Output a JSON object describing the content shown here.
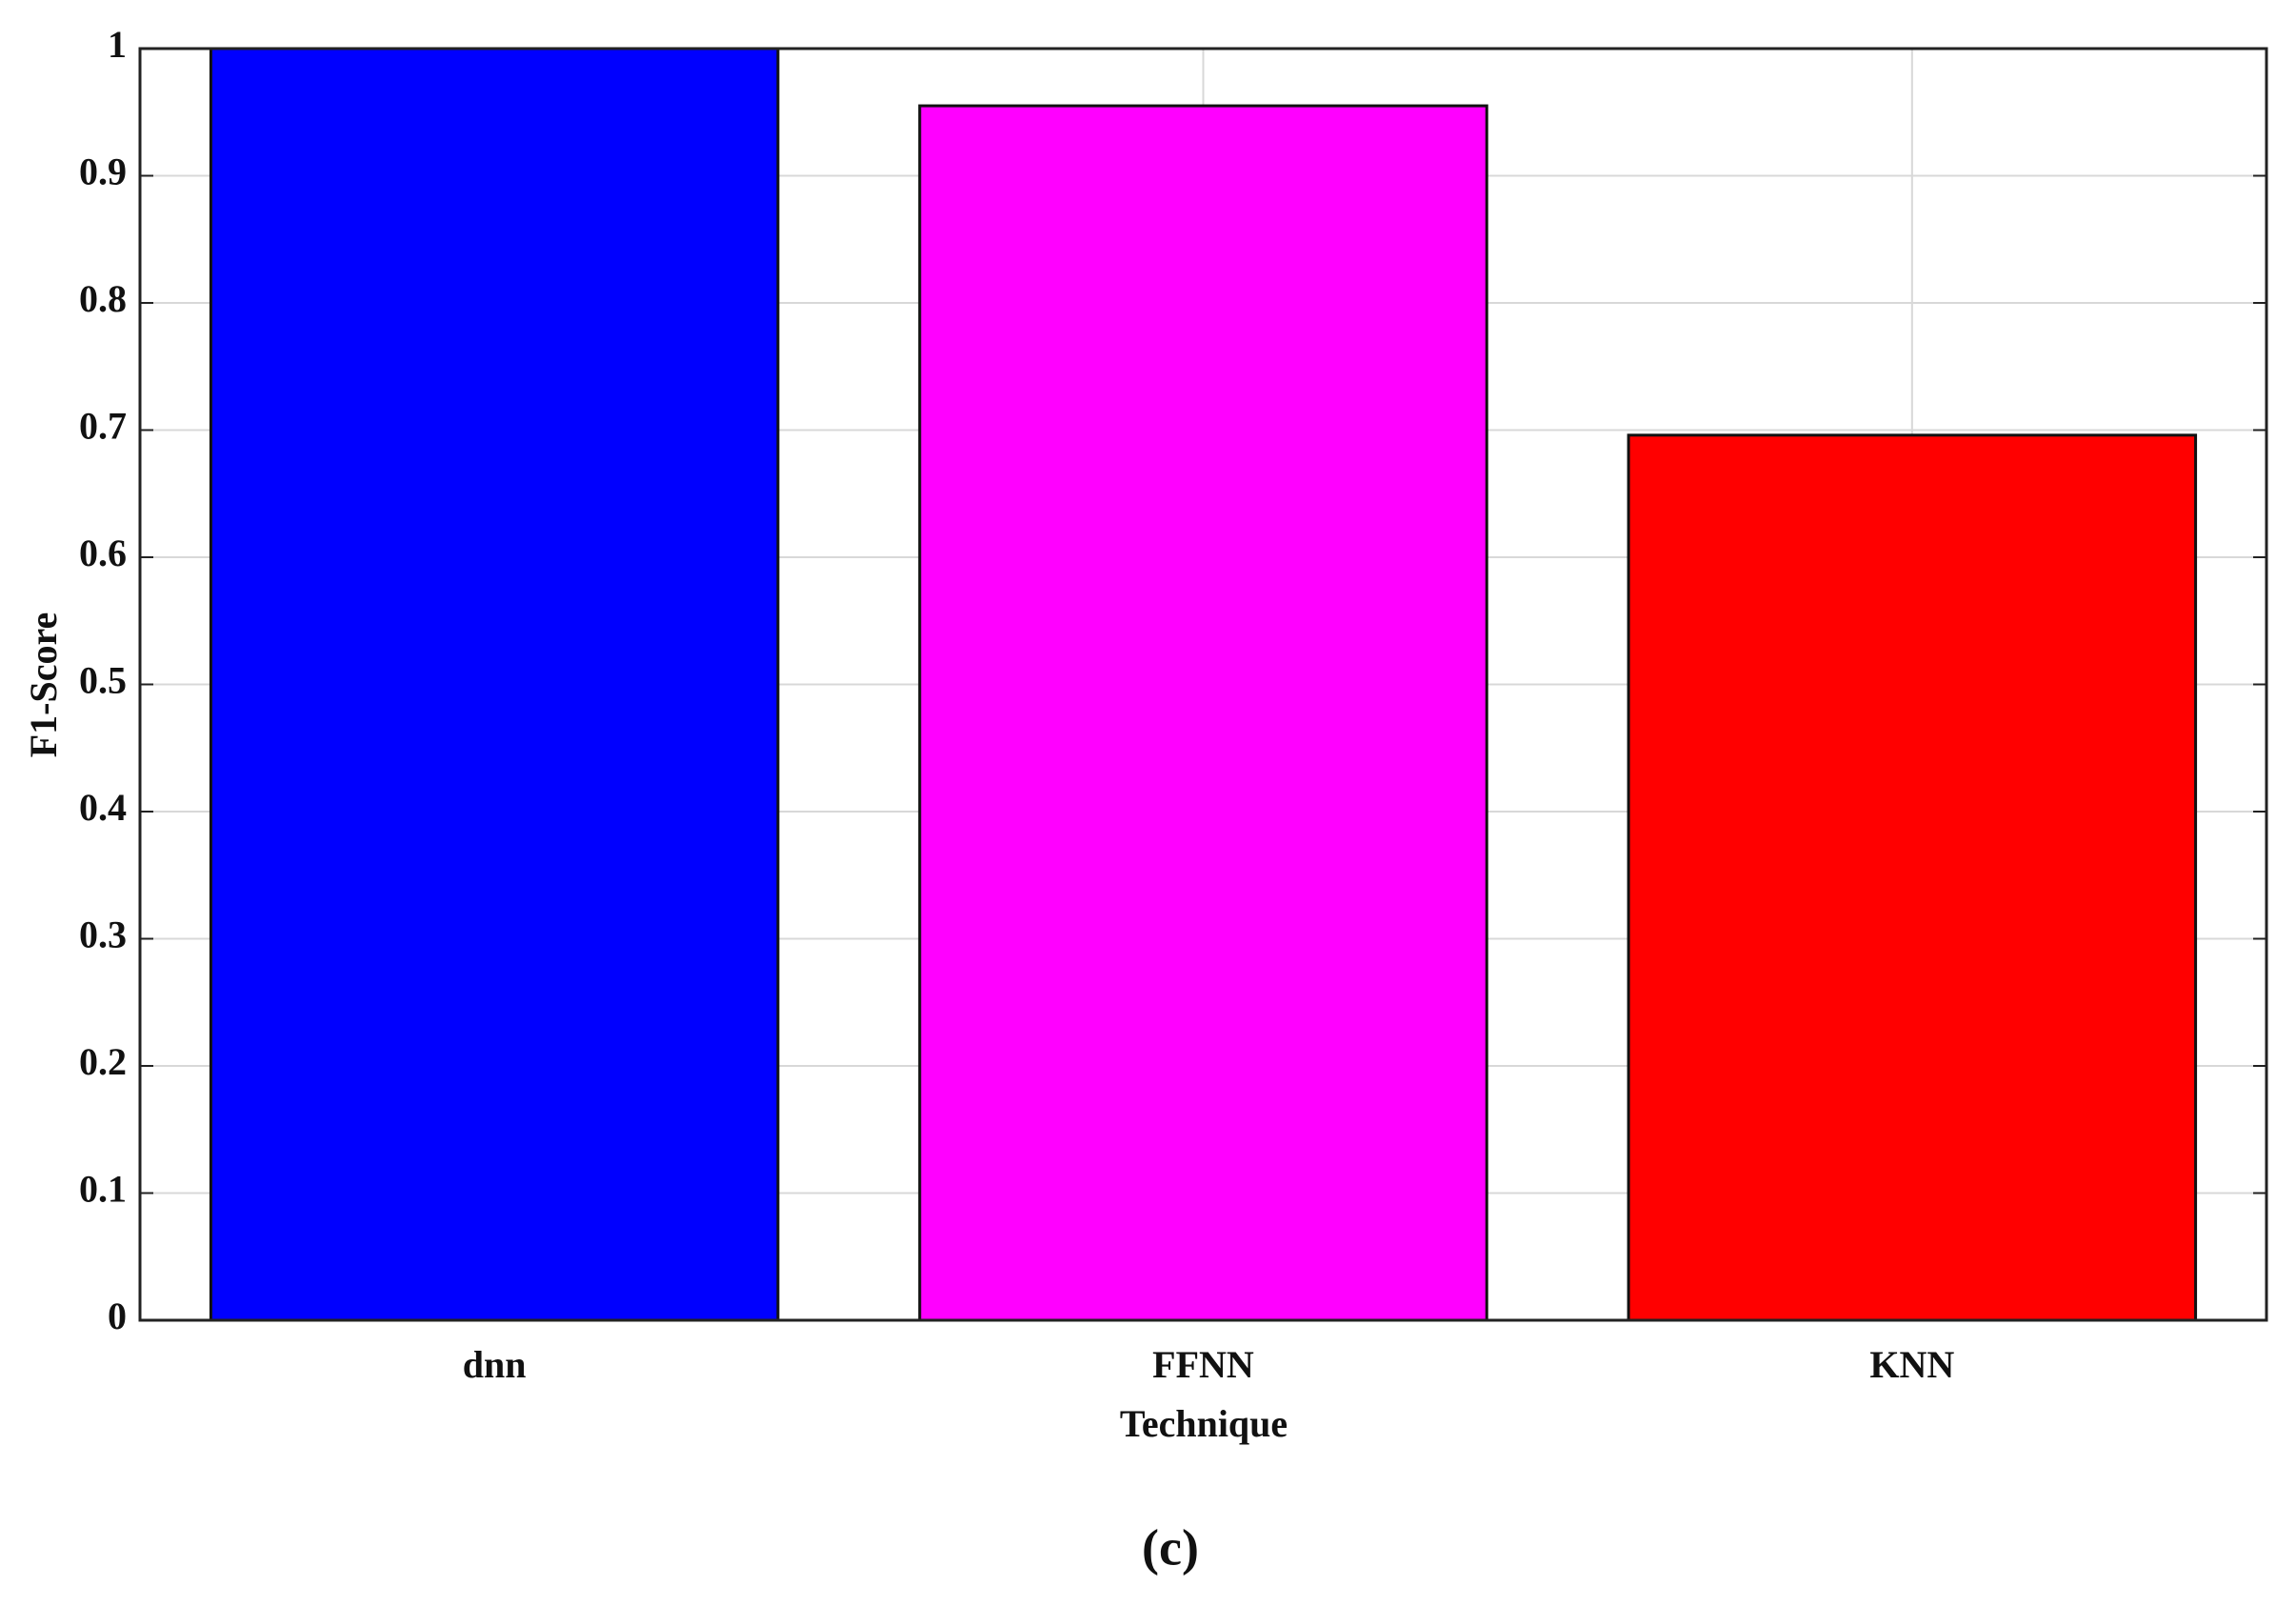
{
  "chart_data": {
    "type": "bar",
    "caption": "(c)",
    "x_label": "Technique",
    "y_label": "F1-Score",
    "categories": [
      "dnn",
      "FFNN",
      "KNN"
    ],
    "values": [
      1.0,
      0.955,
      0.696
    ],
    "colors": [
      "#0000ff",
      "#ff00ff",
      "#ff0000"
    ],
    "ylim": [
      0,
      1
    ],
    "yticks": [
      0,
      0.1,
      0.2,
      0.3,
      0.4,
      0.5,
      0.6,
      0.7,
      0.8,
      0.9,
      1
    ],
    "grid": true
  }
}
